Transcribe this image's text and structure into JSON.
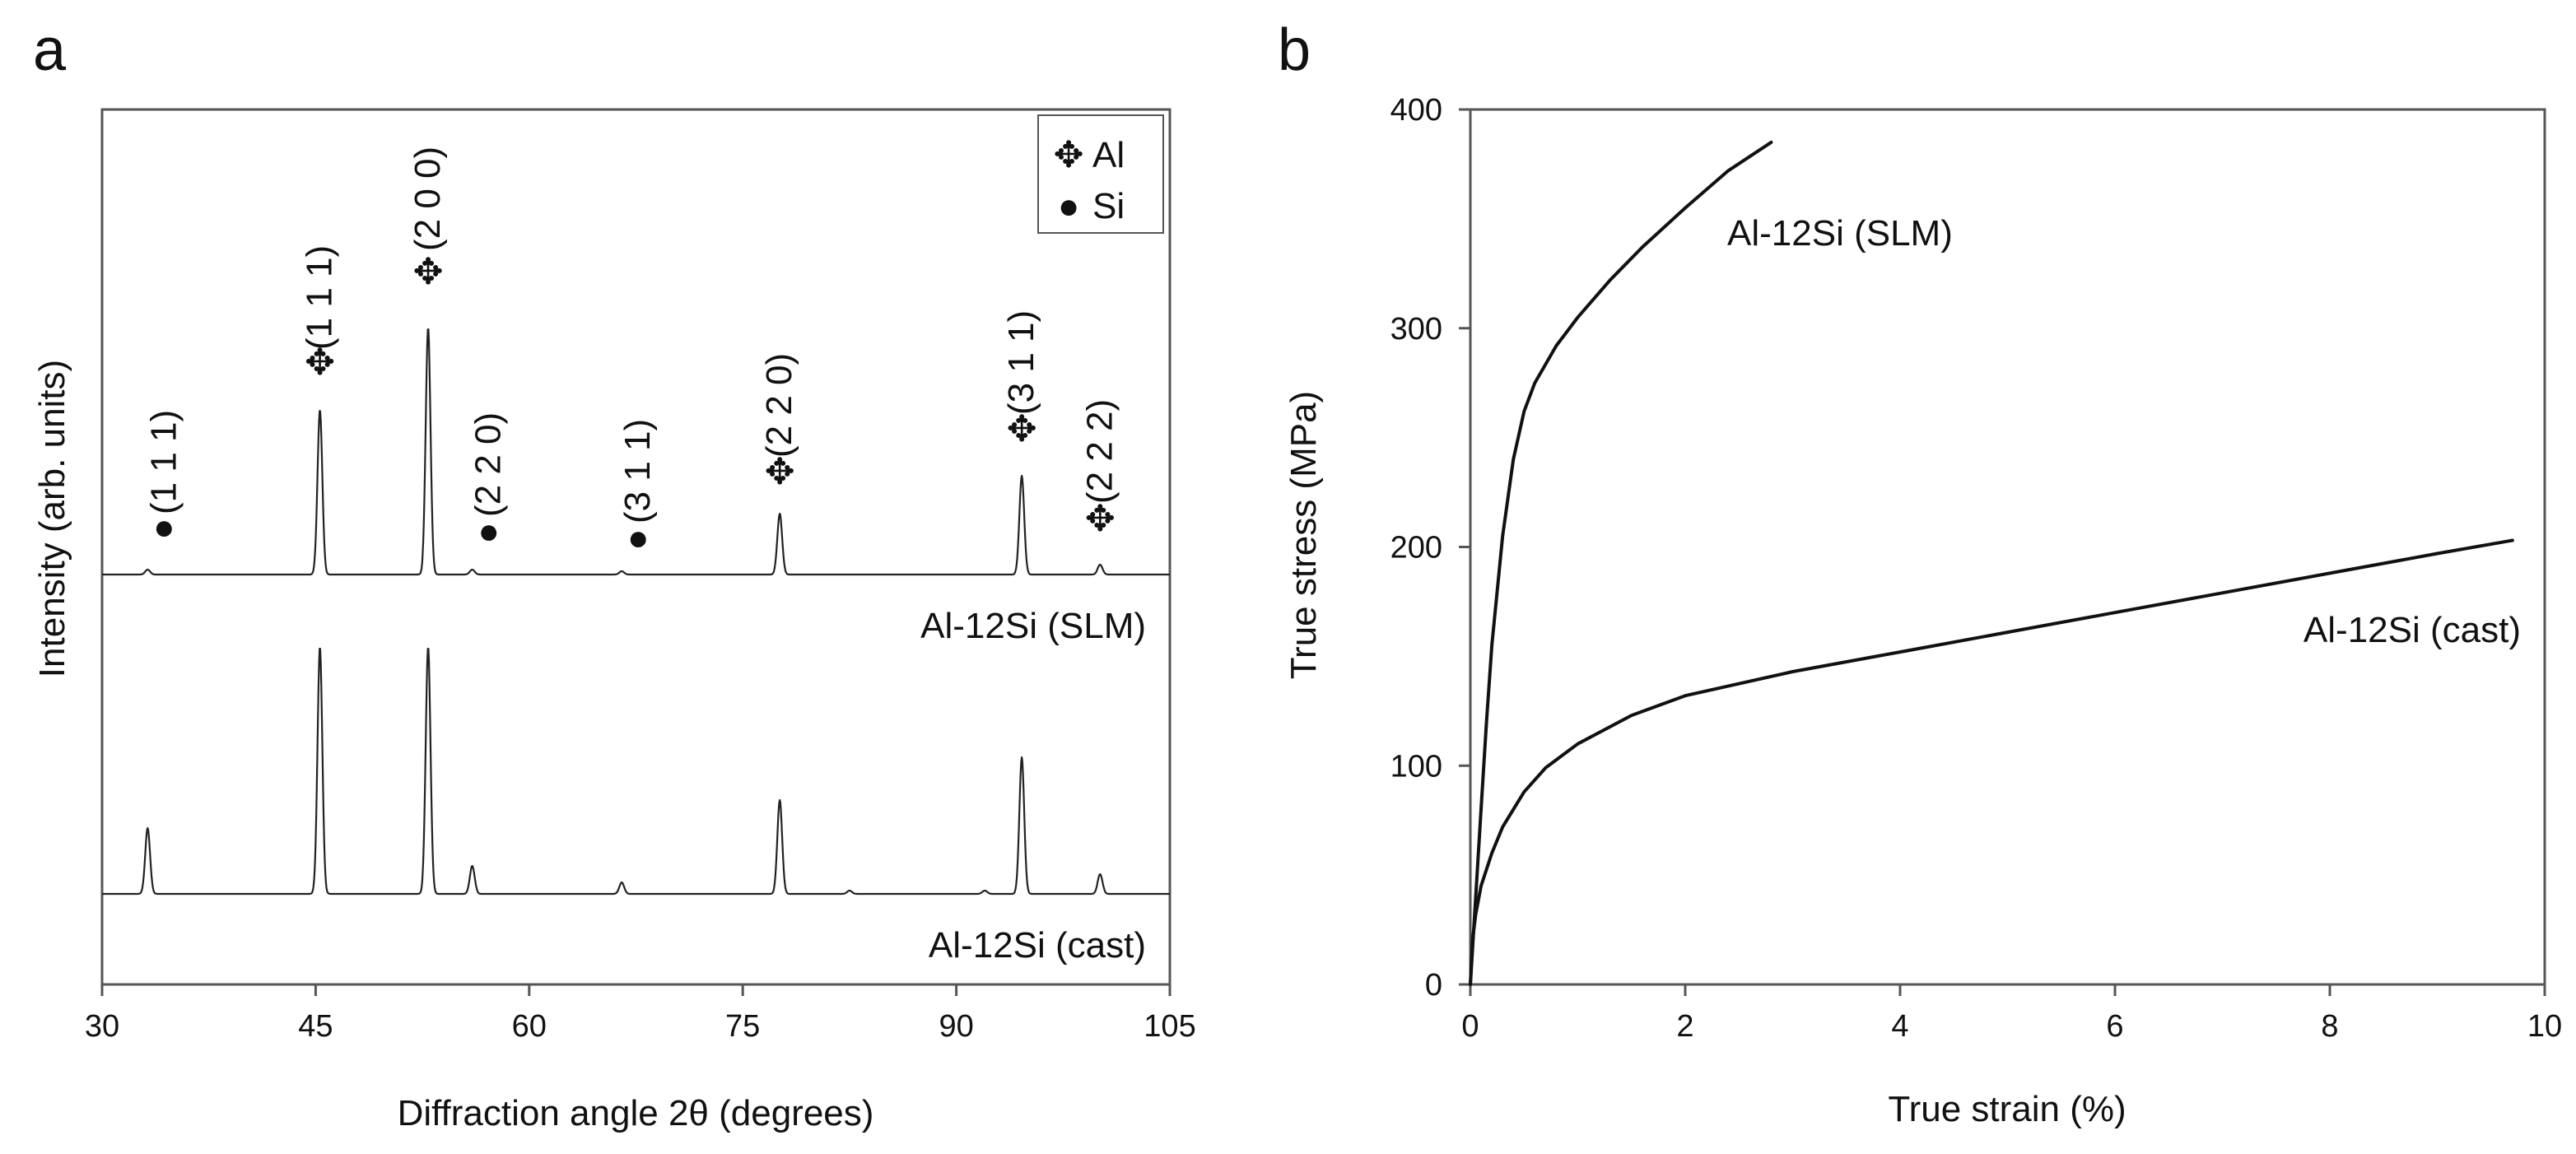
{
  "chart_data": [
    {
      "panel": "a",
      "type": "line",
      "xlabel": "Diffraction angle 2θ (degrees)",
      "ylabel": "Intensity (arb. units)",
      "xlim": [
        30,
        105
      ],
      "xticks": [
        30,
        45,
        60,
        75,
        90,
        105
      ],
      "legend": {
        "position": "top-right",
        "entries": [
          {
            "marker": "✥",
            "label": "Al"
          },
          {
            "marker": "●",
            "label": "Si"
          }
        ]
      },
      "series": [
        {
          "name": "Al-12Si (SLM)",
          "peaks": [
            {
              "x": 33.2,
              "height": 0.03
            },
            {
              "x": 45.3,
              "height": 1.0
            },
            {
              "x": 52.9,
              "height": 1.5
            },
            {
              "x": 56.0,
              "height": 0.03
            },
            {
              "x": 66.5,
              "height": 0.02
            },
            {
              "x": 77.6,
              "height": 0.37
            },
            {
              "x": 94.6,
              "height": 0.6
            },
            {
              "x": 100.1,
              "height": 0.06
            }
          ]
        },
        {
          "name": "Al-12Si (cast)",
          "peaks": [
            {
              "x": 33.2,
              "height": 0.4
            },
            {
              "x": 45.3,
              "height": 1.5
            },
            {
              "x": 52.9,
              "height": 1.5
            },
            {
              "x": 56.0,
              "height": 0.17
            },
            {
              "x": 66.5,
              "height": 0.07
            },
            {
              "x": 77.6,
              "height": 0.57
            },
            {
              "x": 82.5,
              "height": 0.02
            },
            {
              "x": 92.0,
              "height": 0.02
            },
            {
              "x": 94.6,
              "height": 0.83
            },
            {
              "x": 100.1,
              "height": 0.12
            }
          ]
        }
      ],
      "peak_annotations": [
        {
          "phase": "Si",
          "marker": "●",
          "hkl": "(1 1 1)",
          "x": 33.2
        },
        {
          "phase": "Al",
          "marker": "✥",
          "hkl": "(1 1 1)",
          "x": 45.3
        },
        {
          "phase": "Al",
          "marker": "✥",
          "hkl": "(2 0 0)",
          "x": 52.9
        },
        {
          "phase": "Si",
          "marker": "●",
          "hkl": "(2 2 0)",
          "x": 56.0
        },
        {
          "phase": "Si",
          "marker": "●",
          "hkl": "(3 1 1)",
          "x": 66.5
        },
        {
          "phase": "Al",
          "marker": "✥",
          "hkl": "(2 2 0)",
          "x": 77.6
        },
        {
          "phase": "Al",
          "marker": "✥",
          "hkl": "(3 1 1)",
          "x": 94.6
        },
        {
          "phase": "Al",
          "marker": "✥",
          "hkl": "(2 2 2)",
          "x": 100.1
        }
      ]
    },
    {
      "panel": "b",
      "type": "line",
      "xlabel": "True strain (%)",
      "ylabel": "True stress (MPa)",
      "xlim": [
        0,
        10
      ],
      "ylim": [
        0,
        400
      ],
      "xticks": [
        0,
        2,
        4,
        6,
        8,
        10
      ],
      "yticks": [
        0,
        100,
        200,
        300,
        400
      ],
      "series": [
        {
          "name": "Al-12Si (SLM)",
          "x": [
            0,
            0.05,
            0.1,
            0.15,
            0.2,
            0.3,
            0.4,
            0.5,
            0.6,
            0.8,
            1.0,
            1.3,
            1.6,
            2.0,
            2.4,
            2.8
          ],
          "y": [
            0,
            40,
            80,
            120,
            155,
            205,
            240,
            262,
            275,
            292,
            305,
            322,
            337,
            355,
            372,
            385
          ]
        },
        {
          "name": "Al-12Si (cast)",
          "x": [
            0,
            0.02,
            0.05,
            0.1,
            0.2,
            0.3,
            0.5,
            0.7,
            1.0,
            1.5,
            2.0,
            3.0,
            4.0,
            5.0,
            6.0,
            7.0,
            8.0,
            9.0,
            9.7
          ],
          "y": [
            0,
            20,
            32,
            45,
            60,
            72,
            88,
            99,
            110,
            123,
            132,
            143,
            152,
            161,
            170,
            179,
            188,
            197,
            203
          ]
        }
      ]
    }
  ]
}
